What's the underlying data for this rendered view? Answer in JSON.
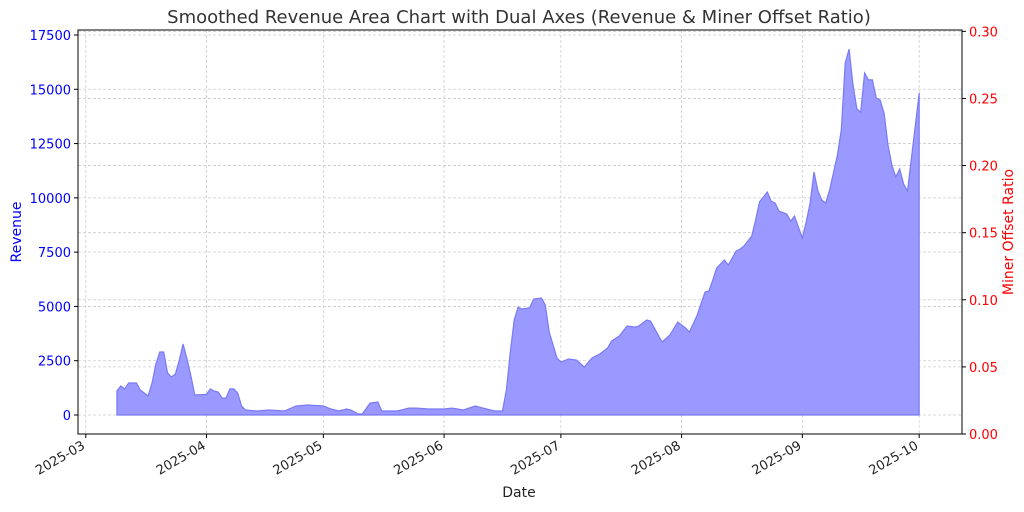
{
  "chart_data": {
    "type": "area",
    "title": "Smoothed Revenue Area Chart with Dual Axes (Revenue & Miner Offset Ratio)",
    "xlabel": "Date",
    "ylabel_left": "Revenue",
    "ylabel_right": "Miner Offset Ratio",
    "x_ticks": [
      "2025-03",
      "2025-04",
      "2025-05",
      "2025-06",
      "2025-07",
      "2025-08",
      "2025-09",
      "2025-10"
    ],
    "x_tick_dates": [
      "2025-03-01",
      "2025-04-01",
      "2025-05-01",
      "2025-06-01",
      "2025-07-01",
      "2025-08-01",
      "2025-09-01",
      "2025-10-01"
    ],
    "xlim": [
      "2025-02-27",
      "2025-10-12"
    ],
    "y_left_ticks": [
      0,
      2500,
      5000,
      7500,
      10000,
      12500,
      15000,
      17500
    ],
    "y_left_lim": [
      -875,
      17730
    ],
    "y_right_ticks": [
      "0.00",
      "0.05",
      "0.10",
      "0.15",
      "0.20",
      "0.25",
      "0.30"
    ],
    "y_right_lim": [
      0,
      0.301
    ],
    "grid": true,
    "colors": {
      "fill": "#9999ff",
      "edge": "#7a7af5",
      "left_axis": "#0000ff",
      "right_axis": "#ff0000",
      "grid": "#cccccc"
    },
    "series": [
      {
        "name": "Revenue",
        "axis": "left",
        "points": [
          [
            "2025-03-09",
            1105
          ],
          [
            "2025-03-10",
            1335
          ],
          [
            "2025-03-11",
            1200
          ],
          [
            "2025-03-12",
            1475
          ],
          [
            "2025-03-14",
            1475
          ],
          [
            "2025-03-15",
            1150
          ],
          [
            "2025-03-16",
            1015
          ],
          [
            "2025-03-17",
            875
          ],
          [
            "2025-03-18",
            1475
          ],
          [
            "2025-03-19",
            2350
          ],
          [
            "2025-03-20",
            2900
          ],
          [
            "2025-03-21",
            2900
          ],
          [
            "2025-03-22",
            1930
          ],
          [
            "2025-03-23",
            1750
          ],
          [
            "2025-03-24",
            1890
          ],
          [
            "2025-03-25",
            2530
          ],
          [
            "2025-03-26",
            3270
          ],
          [
            "2025-03-27",
            2580
          ],
          [
            "2025-03-28",
            1800
          ],
          [
            "2025-03-29",
            920
          ],
          [
            "2025-04-01",
            950
          ],
          [
            "2025-04-02",
            1200
          ],
          [
            "2025-04-03",
            1100
          ],
          [
            "2025-04-04",
            1060
          ],
          [
            "2025-04-05",
            780
          ],
          [
            "2025-04-06",
            780
          ],
          [
            "2025-04-07",
            1200
          ],
          [
            "2025-04-08",
            1200
          ],
          [
            "2025-04-09",
            1010
          ],
          [
            "2025-04-10",
            415
          ],
          [
            "2025-04-11",
            230
          ],
          [
            "2025-04-14",
            185
          ],
          [
            "2025-04-17",
            230
          ],
          [
            "2025-04-21",
            185
          ],
          [
            "2025-04-24",
            415
          ],
          [
            "2025-04-27",
            460
          ],
          [
            "2025-05-01",
            415
          ],
          [
            "2025-05-03",
            275
          ],
          [
            "2025-05-05",
            185
          ],
          [
            "2025-05-07",
            275
          ],
          [
            "2025-05-08",
            230
          ],
          [
            "2025-05-10",
            45
          ],
          [
            "2025-05-11",
            45
          ],
          [
            "2025-05-13",
            550
          ],
          [
            "2025-05-15",
            600
          ],
          [
            "2025-05-16",
            185
          ],
          [
            "2025-05-20",
            185
          ],
          [
            "2025-05-23",
            320
          ],
          [
            "2025-05-25",
            320
          ],
          [
            "2025-05-28",
            275
          ],
          [
            "2025-06-01",
            275
          ],
          [
            "2025-06-03",
            320
          ],
          [
            "2025-06-06",
            230
          ],
          [
            "2025-06-09",
            415
          ],
          [
            "2025-06-11",
            320
          ],
          [
            "2025-06-14",
            185
          ],
          [
            "2025-06-16",
            185
          ],
          [
            "2025-06-17",
            1150
          ],
          [
            "2025-06-18",
            2900
          ],
          [
            "2025-06-19",
            4375
          ],
          [
            "2025-06-20",
            4970
          ],
          [
            "2025-06-21",
            4880
          ],
          [
            "2025-06-23",
            4930
          ],
          [
            "2025-06-24",
            5340
          ],
          [
            "2025-06-26",
            5390
          ],
          [
            "2025-06-27",
            5065
          ],
          [
            "2025-06-28",
            3820
          ],
          [
            "2025-06-30",
            2625
          ],
          [
            "2025-07-01",
            2440
          ],
          [
            "2025-07-03",
            2580
          ],
          [
            "2025-07-05",
            2530
          ],
          [
            "2025-07-07",
            2210
          ],
          [
            "2025-07-09",
            2625
          ],
          [
            "2025-07-11",
            2810
          ],
          [
            "2025-07-13",
            3085
          ],
          [
            "2025-07-14",
            3410
          ],
          [
            "2025-07-16",
            3640
          ],
          [
            "2025-07-18",
            4100
          ],
          [
            "2025-07-20",
            4050
          ],
          [
            "2025-07-21",
            4100
          ],
          [
            "2025-07-23",
            4375
          ],
          [
            "2025-07-24",
            4330
          ],
          [
            "2025-07-26",
            3680
          ],
          [
            "2025-07-27",
            3360
          ],
          [
            "2025-07-29",
            3680
          ],
          [
            "2025-07-31",
            4280
          ],
          [
            "2025-08-02",
            4010
          ],
          [
            "2025-08-03",
            3820
          ],
          [
            "2025-08-05",
            4600
          ],
          [
            "2025-08-07",
            5660
          ],
          [
            "2025-08-08",
            5710
          ],
          [
            "2025-08-09",
            6220
          ],
          [
            "2025-08-10",
            6770
          ],
          [
            "2025-08-12",
            7140
          ],
          [
            "2025-08-13",
            6910
          ],
          [
            "2025-08-15",
            7550
          ],
          [
            "2025-08-16",
            7640
          ],
          [
            "2025-08-17",
            7780
          ],
          [
            "2025-08-19",
            8240
          ],
          [
            "2025-08-20",
            8980
          ],
          [
            "2025-08-21",
            9810
          ],
          [
            "2025-08-23",
            10270
          ],
          [
            "2025-08-24",
            9850
          ],
          [
            "2025-08-25",
            9760
          ],
          [
            "2025-08-26",
            9390
          ],
          [
            "2025-08-28",
            9250
          ],
          [
            "2025-08-29",
            8930
          ],
          [
            "2025-08-30",
            9160
          ],
          [
            "2025-09-01",
            8150
          ],
          [
            "2025-09-02",
            8890
          ],
          [
            "2025-09-03",
            9760
          ],
          [
            "2025-09-04",
            11190
          ],
          [
            "2025-09-05",
            10320
          ],
          [
            "2025-09-06",
            9900
          ],
          [
            "2025-09-07",
            9760
          ],
          [
            "2025-09-08",
            10360
          ],
          [
            "2025-09-10",
            11970
          ],
          [
            "2025-09-11",
            13120
          ],
          [
            "2025-09-12",
            16210
          ],
          [
            "2025-09-13",
            16850
          ],
          [
            "2025-09-14",
            15200
          ],
          [
            "2025-09-15",
            14090
          ],
          [
            "2025-09-16",
            13950
          ],
          [
            "2025-09-17",
            15750
          ],
          [
            "2025-09-18",
            15430
          ],
          [
            "2025-09-19",
            15430
          ],
          [
            "2025-09-20",
            14600
          ],
          [
            "2025-09-21",
            14500
          ],
          [
            "2025-09-22",
            13900
          ],
          [
            "2025-09-23",
            12430
          ],
          [
            "2025-09-24",
            11510
          ],
          [
            "2025-09-25",
            10960
          ],
          [
            "2025-09-26",
            11330
          ],
          [
            "2025-09-27",
            10640
          ],
          [
            "2025-09-28",
            10320
          ],
          [
            "2025-10-01",
            14830
          ]
        ]
      }
    ]
  }
}
